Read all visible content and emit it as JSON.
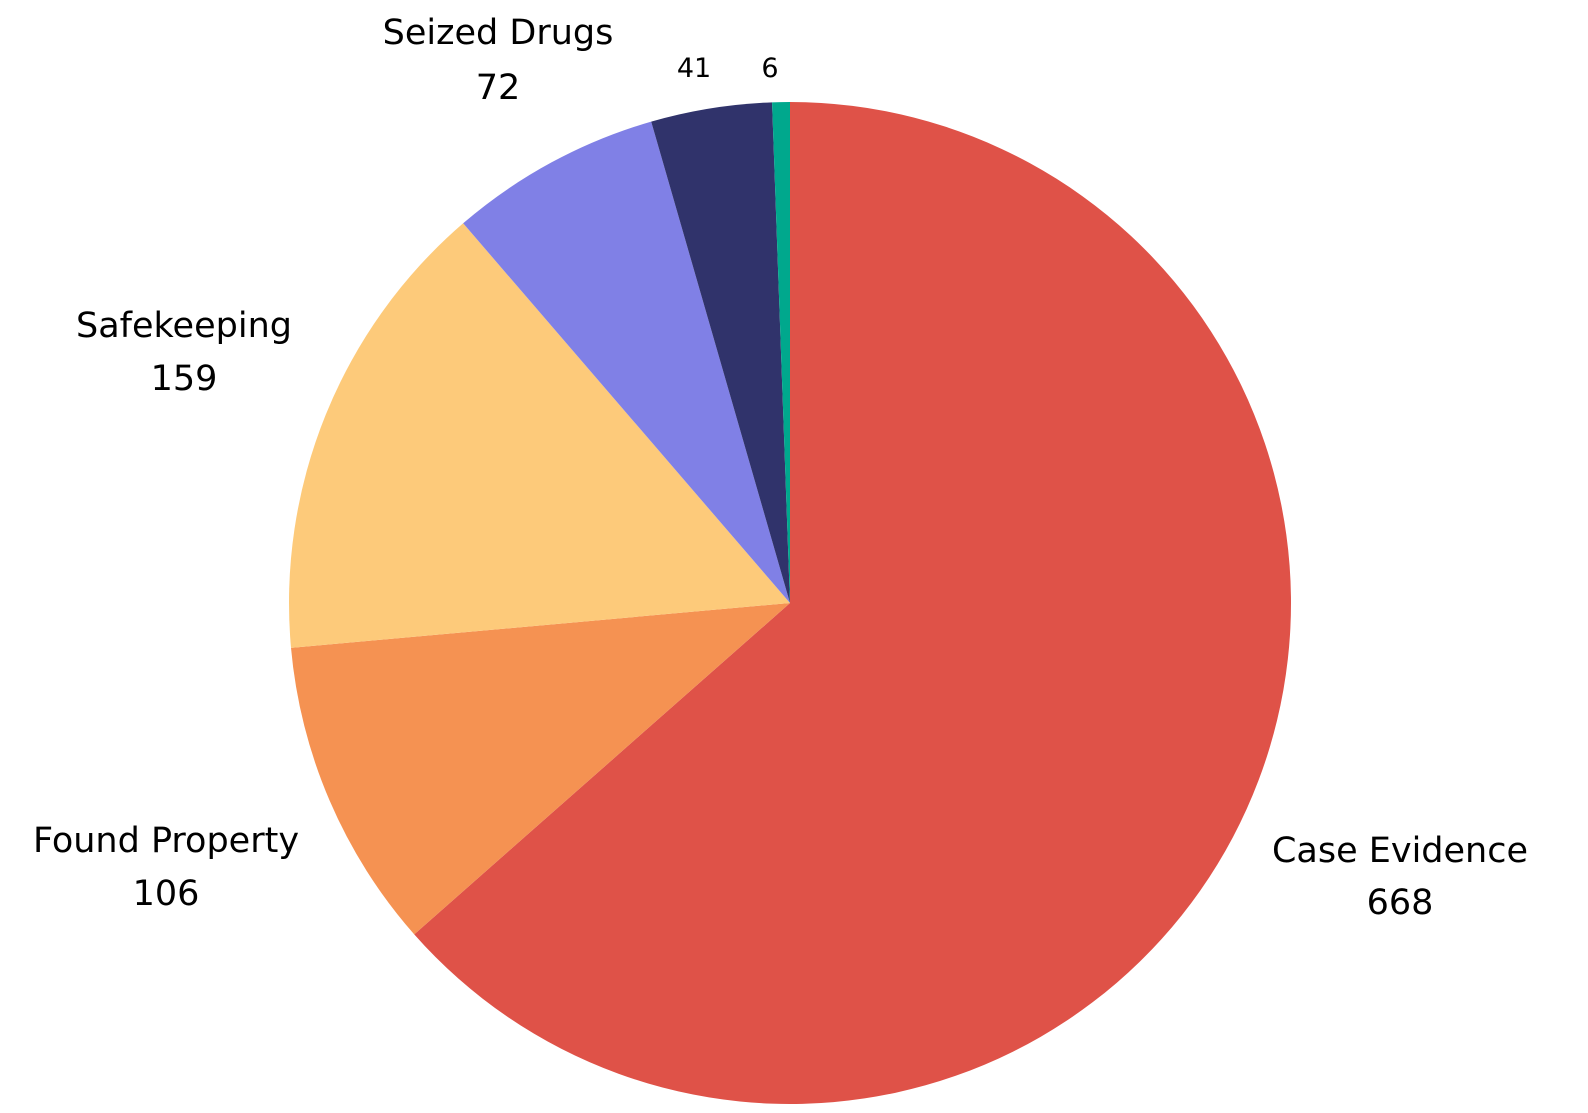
{
  "chart_data": {
    "type": "pie",
    "title": "",
    "start": "12 o'clock",
    "direction": "clockwise",
    "legend": "none",
    "slices": [
      {
        "label": "Case Evidence",
        "value": 668,
        "color": "#DF5248"
      },
      {
        "label": "Found Property",
        "value": 106,
        "color": "#F59252"
      },
      {
        "label": "Safekeeping",
        "value": 159,
        "color": "#FDCA7A"
      },
      {
        "label": "Seized Drugs",
        "value": 72,
        "color": "#8080E6"
      },
      {
        "label": "",
        "value": 41,
        "color": "#30336B"
      },
      {
        "label": "",
        "value": 6,
        "color": "#00A88D"
      }
    ]
  }
}
